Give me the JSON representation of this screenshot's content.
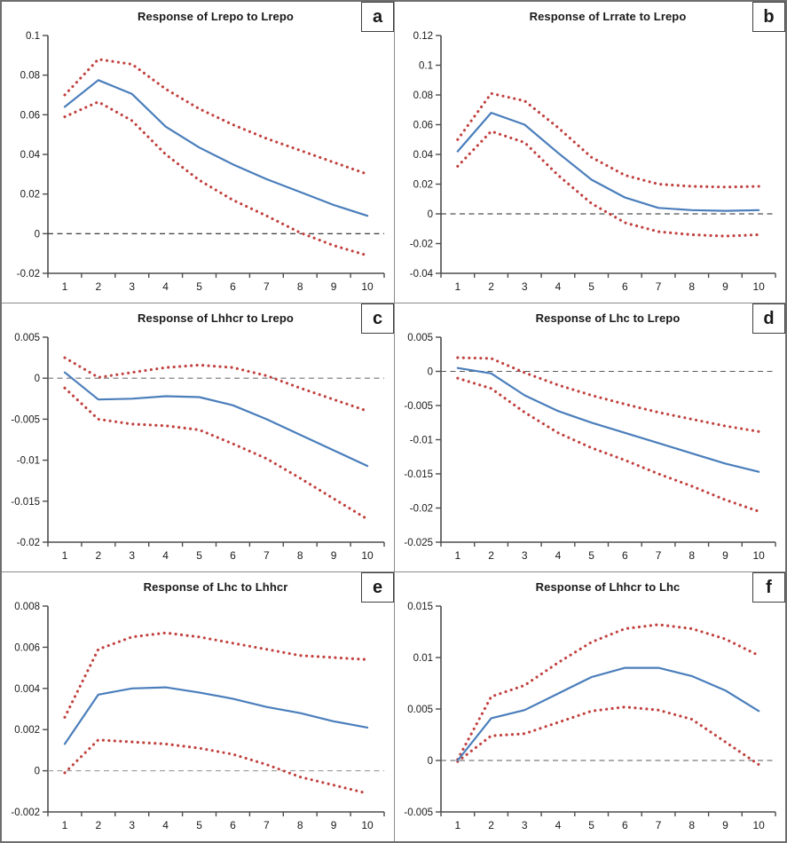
{
  "figure": {
    "background": "#ffffff",
    "outer_border_color": "#6e6e6e",
    "divider_color": "#8c8c8c",
    "axis_color": "#4d4d4d",
    "tick_label_color": "#1a1a1a",
    "response_color": "#4a7ebb",
    "band_color": "#c0403d"
  },
  "chart_data": [
    {
      "panel_label": "a",
      "title": "Response of Lrepo to Lrepo",
      "type": "line",
      "x": [
        1,
        2,
        3,
        4,
        5,
        6,
        7,
        8,
        9,
        10
      ],
      "xlabel": "",
      "ylabel": "",
      "ylim": [
        -0.02,
        0.1
      ],
      "ytick_values": [
        0.1,
        0.08,
        0.06,
        0.04,
        0.02,
        0,
        -0.02
      ],
      "ytick_labels": [
        "0.1",
        "0.08",
        "0.06",
        "0.04",
        "0.02",
        "0",
        "-0.02"
      ],
      "zero_line": true,
      "zero_line_color": "#262626",
      "legend": "none",
      "grid": false,
      "series": [
        {
          "name": "response",
          "style": "solid",
          "color": "#4a7ebb",
          "values": [
            0.064,
            0.0775,
            0.0705,
            0.054,
            0.0435,
            0.035,
            0.0275,
            0.021,
            0.0145,
            0.009
          ]
        },
        {
          "name": "upper-band",
          "style": "dotted",
          "color": "#c0403d",
          "values": [
            0.07,
            0.088,
            0.0855,
            0.073,
            0.063,
            0.055,
            0.048,
            0.042,
            0.036,
            0.03
          ]
        },
        {
          "name": "lower-band",
          "style": "dotted",
          "color": "#c0403d",
          "values": [
            0.059,
            0.0665,
            0.057,
            0.04,
            0.027,
            0.017,
            0.009,
            0.0005,
            -0.006,
            -0.011
          ]
        }
      ]
    },
    {
      "panel_label": "b",
      "title": "Response of Lrrate to Lrepo",
      "type": "line",
      "x": [
        1,
        2,
        3,
        4,
        5,
        6,
        7,
        8,
        9,
        10
      ],
      "xlabel": "",
      "ylabel": "",
      "ylim": [
        -0.04,
        0.12
      ],
      "ytick_values": [
        0.12,
        0.1,
        0.08,
        0.06,
        0.04,
        0.02,
        0,
        -0.02,
        -0.04
      ],
      "ytick_labels": [
        "0.12",
        "0.1",
        "0.08",
        "0.06",
        "0.04",
        "0.02",
        "0",
        "-0.02",
        "-0.04"
      ],
      "zero_line": true,
      "zero_line_color": "#262626",
      "legend": "none",
      "grid": false,
      "series": [
        {
          "name": "response",
          "style": "solid",
          "color": "#4a7ebb",
          "values": [
            0.042,
            0.068,
            0.06,
            0.041,
            0.023,
            0.011,
            0.004,
            0.0025,
            0.002,
            0.0025
          ]
        },
        {
          "name": "upper-band",
          "style": "dotted",
          "color": "#c0403d",
          "values": [
            0.05,
            0.081,
            0.076,
            0.058,
            0.038,
            0.026,
            0.02,
            0.0185,
            0.018,
            0.0185
          ]
        },
        {
          "name": "lower-band",
          "style": "dotted",
          "color": "#c0403d",
          "values": [
            0.032,
            0.0555,
            0.048,
            0.026,
            0.007,
            -0.006,
            -0.012,
            -0.014,
            -0.015,
            -0.014
          ]
        }
      ]
    },
    {
      "panel_label": "c",
      "title": "Response of Lhhcr to Lrepo",
      "type": "line",
      "x": [
        1,
        2,
        3,
        4,
        5,
        6,
        7,
        8,
        9,
        10
      ],
      "xlabel": "",
      "ylabel": "",
      "ylim": [
        -0.02,
        0.005
      ],
      "ytick_values": [
        0.005,
        0,
        -0.005,
        -0.01,
        -0.015,
        -0.02
      ],
      "ytick_labels": [
        "0.005",
        "0",
        "-0.005",
        "-0.01",
        "-0.015",
        "-0.02"
      ],
      "zero_line": true,
      "zero_line_color": "#737373",
      "legend": "none",
      "grid": false,
      "series": [
        {
          "name": "response",
          "style": "solid",
          "color": "#4a7ebb",
          "values": [
            0.0007,
            -0.0026,
            -0.0025,
            -0.0022,
            -0.0023,
            -0.0033,
            -0.005,
            -0.0069,
            -0.0088,
            -0.0107
          ]
        },
        {
          "name": "upper-band",
          "style": "dotted",
          "color": "#c0403d",
          "values": [
            0.0025,
            0.0001,
            0.0007,
            0.0013,
            0.0016,
            0.0013,
            0.0003,
            -0.0012,
            -0.0026,
            -0.004
          ]
        },
        {
          "name": "lower-band",
          "style": "dotted",
          "color": "#c0403d",
          "values": [
            -0.0012,
            -0.005,
            -0.0056,
            -0.0058,
            -0.0063,
            -0.008,
            -0.0098,
            -0.0122,
            -0.0147,
            -0.0172
          ]
        }
      ]
    },
    {
      "panel_label": "d",
      "title": "Response of Lhc to Lrepo",
      "type": "line",
      "x": [
        1,
        2,
        3,
        4,
        5,
        6,
        7,
        8,
        9,
        10
      ],
      "xlabel": "",
      "ylabel": "",
      "ylim": [
        -0.025,
        0.005
      ],
      "ytick_values": [
        0.005,
        0,
        -0.005,
        -0.01,
        -0.015,
        -0.02,
        -0.025
      ],
      "ytick_labels": [
        "0.005",
        "0",
        "-0.005",
        "-0.01",
        "-0.015",
        "-0.02",
        "-0.025"
      ],
      "zero_line": true,
      "zero_line_color": "#595959",
      "legend": "none",
      "grid": false,
      "series": [
        {
          "name": "response",
          "style": "solid",
          "color": "#4a7ebb",
          "values": [
            0.0005,
            -0.0003,
            -0.0035,
            -0.0058,
            -0.0075,
            -0.009,
            -0.0105,
            -0.012,
            -0.0135,
            -0.0147
          ]
        },
        {
          "name": "upper-band",
          "style": "dotted",
          "color": "#c0403d",
          "values": [
            0.002,
            0.0019,
            -0.0002,
            -0.002,
            -0.0035,
            -0.0048,
            -0.006,
            -0.007,
            -0.008,
            -0.0088
          ]
        },
        {
          "name": "lower-band",
          "style": "dotted",
          "color": "#c0403d",
          "values": [
            -0.001,
            -0.0025,
            -0.006,
            -0.009,
            -0.0112,
            -0.013,
            -0.015,
            -0.0168,
            -0.0188,
            -0.0205
          ]
        }
      ]
    },
    {
      "panel_label": "e",
      "title": "Response of Lhc to Lhhcr",
      "type": "line",
      "x": [
        1,
        2,
        3,
        4,
        5,
        6,
        7,
        8,
        9,
        10
      ],
      "xlabel": "",
      "ylabel": "",
      "ylim": [
        -0.002,
        0.008
      ],
      "ytick_values": [
        0.008,
        0.006,
        0.004,
        0.002,
        0,
        -0.002
      ],
      "ytick_labels": [
        "0.008",
        "0.006",
        "0.004",
        "0.002",
        "0",
        "-0.002"
      ],
      "zero_line": true,
      "zero_line_color": "#9b9b9b",
      "legend": "none",
      "grid": false,
      "series": [
        {
          "name": "response",
          "style": "solid",
          "color": "#4a7ebb",
          "values": [
            0.0013,
            0.0037,
            0.004,
            0.00405,
            0.0038,
            0.0035,
            0.0031,
            0.0028,
            0.0024,
            0.0021
          ]
        },
        {
          "name": "upper-band",
          "style": "dotted",
          "color": "#c0403d",
          "values": [
            0.0026,
            0.0059,
            0.0065,
            0.0067,
            0.0065,
            0.0062,
            0.0059,
            0.0056,
            0.0055,
            0.0054
          ]
        },
        {
          "name": "lower-band",
          "style": "dotted",
          "color": "#c0403d",
          "values": [
            -0.0001,
            0.0015,
            0.0014,
            0.0013,
            0.0011,
            0.0008,
            0.0003,
            -0.0003,
            -0.0007,
            -0.0011
          ]
        }
      ]
    },
    {
      "panel_label": "f",
      "title": "Response of Lhhcr to Lhc",
      "type": "line",
      "x": [
        1,
        2,
        3,
        4,
        5,
        6,
        7,
        8,
        9,
        10
      ],
      "xlabel": "",
      "ylabel": "",
      "ylim": [
        -0.005,
        0.015
      ],
      "ytick_values": [
        0.015,
        0.01,
        0.005,
        0,
        -0.005
      ],
      "ytick_labels": [
        "0.015",
        "0.01",
        "0.005",
        "0",
        "-0.005"
      ],
      "zero_line": true,
      "zero_line_color": "#595959",
      "legend": "none",
      "grid": false,
      "series": [
        {
          "name": "response",
          "style": "solid",
          "color": "#4a7ebb",
          "values": [
            0.0,
            0.0041,
            0.0049,
            0.0065,
            0.0081,
            0.009,
            0.009,
            0.0082,
            0.0068,
            0.0048
          ]
        },
        {
          "name": "upper-band",
          "style": "dotted",
          "color": "#c0403d",
          "values": [
            0.0001,
            0.0062,
            0.0073,
            0.0095,
            0.0115,
            0.0128,
            0.0132,
            0.0128,
            0.0118,
            0.0102
          ]
        },
        {
          "name": "lower-band",
          "style": "dotted",
          "color": "#c0403d",
          "values": [
            -0.0001,
            0.0024,
            0.0026,
            0.0037,
            0.0048,
            0.0052,
            0.0049,
            0.004,
            0.0018,
            -0.0004
          ]
        }
      ]
    }
  ]
}
